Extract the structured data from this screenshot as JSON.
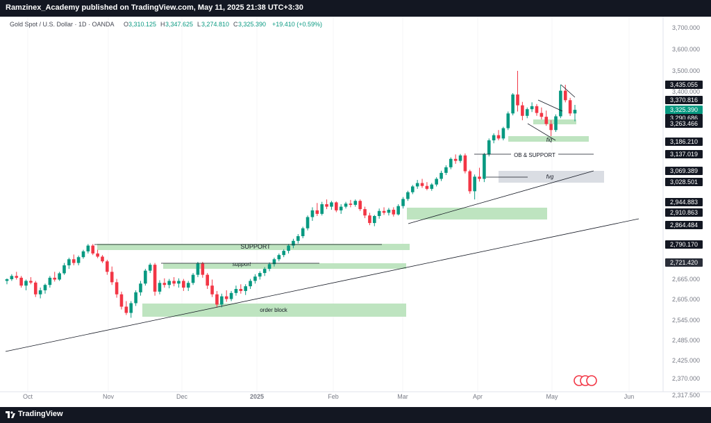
{
  "header": {
    "publish_line": "Ramzinex_Academy published on TradingView.com, May 11, 2025 21:38 UTC+3:30"
  },
  "footer": {
    "brand": "TradingView",
    "logo_icon": "tradingview-logo-icon"
  },
  "legend": {
    "symbol": "Gold Spot / U.S. Dollar · 1D · OANDA",
    "open_label": "O",
    "open": "3,310.125",
    "high_label": "H",
    "high": "3,347.625",
    "low_label": "L",
    "low": "3,274.810",
    "close_label": "C",
    "close": "3,325.390",
    "change": "+19.410 (+0.59%)",
    "color": "#089981"
  },
  "chart_data": {
    "type": "candlestick",
    "x_ticks": [
      "Oct",
      "Nov",
      "Dec",
      "2025",
      "Feb",
      "Mar",
      "Apr",
      "May",
      "Jun"
    ],
    "y_ticks": [
      "3,700.000",
      "3,600.000",
      "3,500.000",
      "3,400.000",
      "2,665.000",
      "2,605.000",
      "2,545.000",
      "2,485.000",
      "2,425.000",
      "2,370.000",
      "2,317.500"
    ],
    "y_range": [
      2317.5,
      3720
    ],
    "price_labels": [
      {
        "text": "3,435.055",
        "style": "dark"
      },
      {
        "text": "3,370.816",
        "style": "dark"
      },
      {
        "text": "3,325.390",
        "style": "green"
      },
      {
        "text": "3,290.686",
        "style": "dark"
      },
      {
        "text": "3,263.466",
        "style": "dark"
      },
      {
        "text": "3,186.210",
        "style": "dark"
      },
      {
        "text": "3,137.019",
        "style": "dark"
      },
      {
        "text": "3,069.389",
        "style": "dark"
      },
      {
        "text": "3,028.501",
        "style": "dark"
      },
      {
        "text": "2,944.883",
        "style": "dark"
      },
      {
        "text": "2,910.863",
        "style": "dark"
      },
      {
        "text": "2,864.484",
        "style": "dark"
      },
      {
        "text": "2,790.170",
        "style": "dark"
      },
      {
        "text": "2,721.420",
        "style": "slate"
      }
    ],
    "annotations": [
      "SUPPORT",
      "support",
      "order block",
      "OB & SUPPORT",
      "fvg",
      "fiq"
    ],
    "colors": {
      "up": "#089981",
      "down": "#f23645",
      "zone": "#b7e1b9",
      "gray_zone": "#d1d4dc"
    },
    "candles": [
      [
        2660,
        2668,
        2650,
        2665
      ],
      [
        2665,
        2682,
        2660,
        2676
      ],
      [
        2676,
        2690,
        2664,
        2670
      ],
      [
        2670,
        2676,
        2640,
        2646
      ],
      [
        2646,
        2664,
        2632,
        2660
      ],
      [
        2660,
        2672,
        2650,
        2655
      ],
      [
        2655,
        2660,
        2612,
        2620
      ],
      [
        2620,
        2640,
        2608,
        2632
      ],
      [
        2632,
        2652,
        2622,
        2648
      ],
      [
        2648,
        2676,
        2640,
        2670
      ],
      [
        2670,
        2690,
        2658,
        2664
      ],
      [
        2664,
        2690,
        2660,
        2685
      ],
      [
        2685,
        2720,
        2680,
        2712
      ],
      [
        2712,
        2740,
        2700,
        2734
      ],
      [
        2734,
        2752,
        2712,
        2720
      ],
      [
        2720,
        2748,
        2712,
        2742
      ],
      [
        2742,
        2770,
        2736,
        2764
      ],
      [
        2764,
        2792,
        2756,
        2786
      ],
      [
        2786,
        2792,
        2750,
        2756
      ],
      [
        2756,
        2770,
        2738,
        2744
      ],
      [
        2744,
        2750,
        2720,
        2726
      ],
      [
        2726,
        2732,
        2680,
        2690
      ],
      [
        2690,
        2708,
        2648,
        2656
      ],
      [
        2656,
        2666,
        2610,
        2620
      ],
      [
        2620,
        2628,
        2576,
        2584
      ],
      [
        2584,
        2600,
        2560,
        2566
      ],
      [
        2566,
        2600,
        2552,
        2594
      ],
      [
        2594,
        2632,
        2586,
        2626
      ],
      [
        2626,
        2660,
        2616,
        2652
      ],
      [
        2652,
        2700,
        2646,
        2694
      ],
      [
        2694,
        2720,
        2686,
        2714
      ],
      [
        2714,
        2720,
        2616,
        2628
      ],
      [
        2628,
        2662,
        2620,
        2654
      ],
      [
        2654,
        2668,
        2640,
        2648
      ],
      [
        2648,
        2666,
        2638,
        2660
      ],
      [
        2660,
        2672,
        2644,
        2652
      ],
      [
        2652,
        2668,
        2640,
        2660
      ],
      [
        2660,
        2666,
        2630,
        2640
      ],
      [
        2640,
        2660,
        2630,
        2654
      ],
      [
        2654,
        2686,
        2648,
        2680
      ],
      [
        2680,
        2724,
        2672,
        2718
      ],
      [
        2718,
        2724,
        2670,
        2680
      ],
      [
        2680,
        2686,
        2636,
        2646
      ],
      [
        2646,
        2664,
        2612,
        2620
      ],
      [
        2620,
        2630,
        2582,
        2590
      ],
      [
        2590,
        2622,
        2582,
        2614
      ],
      [
        2614,
        2632,
        2598,
        2606
      ],
      [
        2606,
        2630,
        2600,
        2624
      ],
      [
        2624,
        2646,
        2616,
        2636
      ],
      [
        2636,
        2650,
        2622,
        2630
      ],
      [
        2630,
        2650,
        2618,
        2644
      ],
      [
        2644,
        2666,
        2636,
        2660
      ],
      [
        2660,
        2682,
        2652,
        2674
      ],
      [
        2674,
        2692,
        2664,
        2686
      ],
      [
        2686,
        2706,
        2676,
        2700
      ],
      [
        2700,
        2722,
        2692,
        2716
      ],
      [
        2716,
        2740,
        2708,
        2734
      ],
      [
        2734,
        2756,
        2726,
        2750
      ],
      [
        2750,
        2772,
        2742,
        2766
      ],
      [
        2766,
        2792,
        2756,
        2786
      ],
      [
        2786,
        2812,
        2776,
        2804
      ],
      [
        2804,
        2830,
        2794,
        2822
      ],
      [
        2822,
        2858,
        2814,
        2852
      ],
      [
        2852,
        2900,
        2844,
        2894
      ],
      [
        2894,
        2928,
        2880,
        2918
      ],
      [
        2918,
        2942,
        2898,
        2906
      ],
      [
        2906,
        2946,
        2900,
        2938
      ],
      [
        2938,
        2956,
        2922,
        2930
      ],
      [
        2930,
        2950,
        2920,
        2944
      ],
      [
        2944,
        2948,
        2912,
        2918
      ],
      [
        2918,
        2938,
        2906,
        2930
      ],
      [
        2930,
        2946,
        2924,
        2940
      ],
      [
        2940,
        2954,
        2928,
        2936
      ],
      [
        2936,
        2956,
        2930,
        2950
      ],
      [
        2950,
        2956,
        2916,
        2922
      ],
      [
        2922,
        2930,
        2890,
        2900
      ],
      [
        2900,
        2910,
        2864,
        2872
      ],
      [
        2872,
        2902,
        2860,
        2898
      ],
      [
        2898,
        2924,
        2888,
        2916
      ],
      [
        2916,
        2928,
        2902,
        2910
      ],
      [
        2910,
        2926,
        2900,
        2920
      ],
      [
        2920,
        2928,
        2896,
        2904
      ],
      [
        2904,
        2938,
        2900,
        2932
      ],
      [
        2932,
        2966,
        2924,
        2958
      ],
      [
        2958,
        2992,
        2950,
        2986
      ],
      [
        2986,
        3016,
        2978,
        3010
      ],
      [
        3010,
        3036,
        3000,
        3024
      ],
      [
        3024,
        3040,
        3004,
        3012
      ],
      [
        3012,
        3028,
        2994,
        3000
      ],
      [
        3000,
        3024,
        2992,
        3018
      ],
      [
        3018,
        3046,
        3010,
        3040
      ],
      [
        3040,
        3070,
        3032,
        3062
      ],
      [
        3062,
        3092,
        3054,
        3084
      ],
      [
        3084,
        3124,
        3076,
        3118
      ],
      [
        3118,
        3136,
        3098,
        3110
      ],
      [
        3110,
        3138,
        3102,
        3132
      ],
      [
        3132,
        3140,
        3060,
        3068
      ],
      [
        3068,
        3074,
        2980,
        2990
      ],
      [
        2990,
        3056,
        2956,
        3048
      ],
      [
        3048,
        3082,
        3030,
        3040
      ],
      [
        3040,
        3142,
        3028,
        3136
      ],
      [
        3136,
        3200,
        3128,
        3192
      ],
      [
        3192,
        3222,
        3180,
        3214
      ],
      [
        3214,
        3236,
        3192,
        3200
      ],
      [
        3200,
        3250,
        3192,
        3244
      ],
      [
        3244,
        3318,
        3236,
        3310
      ],
      [
        3310,
        3400,
        3302,
        3394
      ],
      [
        3394,
        3500,
        3318,
        3346
      ],
      [
        3346,
        3362,
        3280,
        3300
      ],
      [
        3300,
        3336,
        3290,
        3328
      ],
      [
        3328,
        3360,
        3316,
        3342
      ],
      [
        3342,
        3352,
        3300,
        3312
      ],
      [
        3312,
        3336,
        3284,
        3296
      ],
      [
        3296,
        3322,
        3254,
        3262
      ],
      [
        3262,
        3280,
        3210,
        3236
      ],
      [
        3236,
        3306,
        3228,
        3298
      ],
      [
        3298,
        3436,
        3290,
        3410
      ],
      [
        3410,
        3435,
        3360,
        3370
      ],
      [
        3370,
        3380,
        3300,
        3310
      ],
      [
        3310,
        3348,
        3275,
        3325
      ]
    ]
  }
}
